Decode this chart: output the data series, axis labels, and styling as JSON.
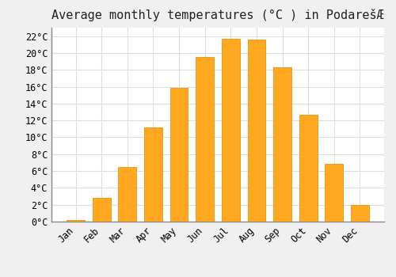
{
  "title": "Average monthly temperatures (°C ) in PodarešÆ",
  "months": [
    "Jan",
    "Feb",
    "Mar",
    "Apr",
    "May",
    "Jun",
    "Jul",
    "Aug",
    "Sep",
    "Oct",
    "Nov",
    "Dec"
  ],
  "values": [
    0.2,
    2.8,
    6.5,
    11.2,
    15.9,
    19.5,
    21.7,
    21.6,
    18.3,
    12.7,
    6.9,
    2.0
  ],
  "bar_color": "#FFA820",
  "bar_edge_color": "#E8930A",
  "background_color": "#F0F0F0",
  "plot_bg_color": "#FFFFFF",
  "grid_color": "#DDDDDD",
  "ylim": [
    0,
    23
  ],
  "yticks": [
    0,
    2,
    4,
    6,
    8,
    10,
    12,
    14,
    16,
    18,
    20,
    22
  ],
  "ylabel_suffix": "°C",
  "title_fontsize": 11,
  "tick_fontsize": 8.5,
  "font_family": "monospace"
}
